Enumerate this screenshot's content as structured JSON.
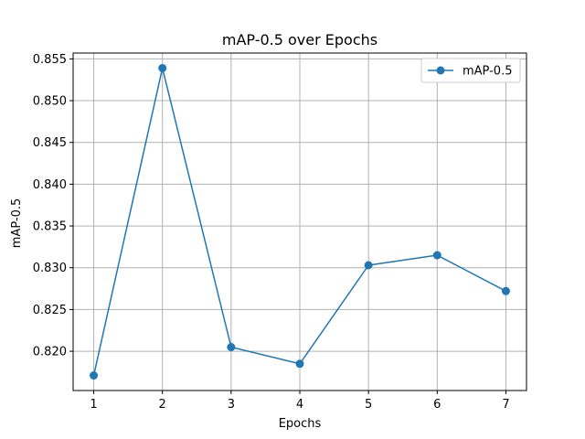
{
  "chart_data": {
    "type": "line",
    "title": "mAP-0.5 over Epochs",
    "xlabel": "Epochs",
    "ylabel": "mAP-0.5",
    "x": [
      1,
      2,
      3,
      4,
      5,
      6,
      7
    ],
    "series": [
      {
        "name": "mAP-0.5",
        "values": [
          0.8171,
          0.8539,
          0.8205,
          0.8185,
          0.8303,
          0.8315,
          0.8272
        ]
      }
    ],
    "xlim": [
      0.7,
      7.3
    ],
    "ylim": [
      0.8153,
      0.8557
    ],
    "xticks": [
      "1",
      "2",
      "3",
      "4",
      "5",
      "6",
      "7"
    ],
    "yticks": [
      0.82,
      0.825,
      0.83,
      0.835,
      0.84,
      0.845,
      0.85,
      0.855
    ],
    "ytick_labels": [
      "0.820",
      "0.825",
      "0.830",
      "0.835",
      "0.840",
      "0.845",
      "0.850",
      "0.855"
    ],
    "grid": true,
    "marker": "circle",
    "legend_position": "top-right",
    "colors": {
      "series": "#1f77b4",
      "grid": "#b0b0b0",
      "axis": "#000000"
    }
  }
}
